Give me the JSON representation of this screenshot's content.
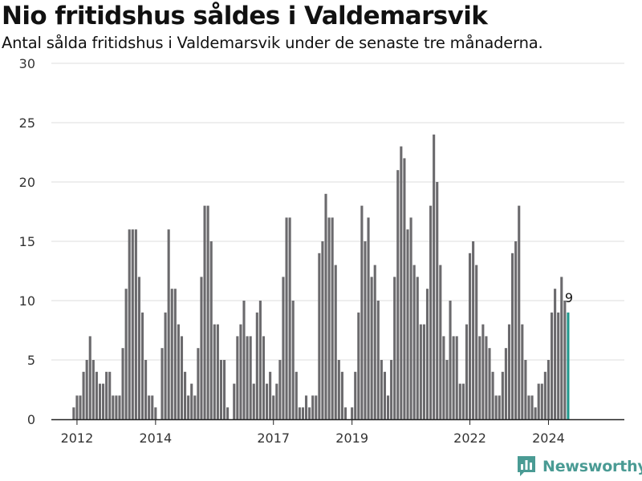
{
  "title": "Nio fritidshus såldes i Valdemarsvik",
  "subtitle": "Antal sålda fritidshus i Valdemarsvik under de senaste tre månaderna.",
  "brand": {
    "name": "Newsworthy",
    "color": "#4a9b94",
    "icon": "newsworthy-logo-icon"
  },
  "colors": {
    "bar": "#6b6a6d",
    "highlight": "#22998e",
    "grid": "#dddddd",
    "axis": "#222222",
    "text": "#333333"
  },
  "chart_data": {
    "type": "bar",
    "title": "Nio fritidshus såldes i Valdemarsvik",
    "subtitle": "Antal sålda fritidshus i Valdemarsvik under de senaste tre månaderna.",
    "xlabel": "",
    "ylabel": "",
    "ylim": [
      0,
      30
    ],
    "yticks": [
      0,
      5,
      10,
      15,
      20,
      25,
      30
    ],
    "xticks": [
      "2012",
      "2014",
      "2017",
      "2019",
      "2022",
      "2024"
    ],
    "grid": true,
    "frequency": "monthly (rolling three-month total)",
    "start_month": "2011-12",
    "highlight_last": true,
    "annotation": {
      "label": "9",
      "value": 9
    },
    "values": [
      1,
      2,
      2,
      4,
      5,
      7,
      5,
      4,
      3,
      3,
      4,
      4,
      2,
      2,
      2,
      6,
      11,
      16,
      16,
      16,
      12,
      9,
      5,
      2,
      2,
      1,
      0,
      6,
      9,
      16,
      11,
      11,
      8,
      7,
      4,
      2,
      3,
      2,
      6,
      12,
      18,
      18,
      15,
      8,
      8,
      5,
      5,
      1,
      0,
      3,
      7,
      8,
      10,
      7,
      7,
      3,
      9,
      10,
      7,
      3,
      4,
      2,
      3,
      5,
      12,
      17,
      17,
      10,
      4,
      1,
      1,
      2,
      1,
      2,
      2,
      14,
      15,
      19,
      17,
      17,
      13,
      5,
      4,
      1,
      0,
      1,
      4,
      9,
      18,
      15,
      17,
      12,
      13,
      10,
      5,
      4,
      2,
      5,
      12,
      21,
      23,
      22,
      16,
      17,
      13,
      12,
      8,
      8,
      11,
      18,
      24,
      20,
      13,
      7,
      5,
      10,
      7,
      7,
      3,
      3,
      8,
      14,
      15,
      13,
      7,
      8,
      7,
      6,
      4,
      2,
      2,
      4,
      6,
      8,
      14,
      15,
      18,
      8,
      5,
      2,
      2,
      1,
      3,
      3,
      4,
      5,
      9,
      11,
      9,
      12,
      10,
      9
    ]
  }
}
